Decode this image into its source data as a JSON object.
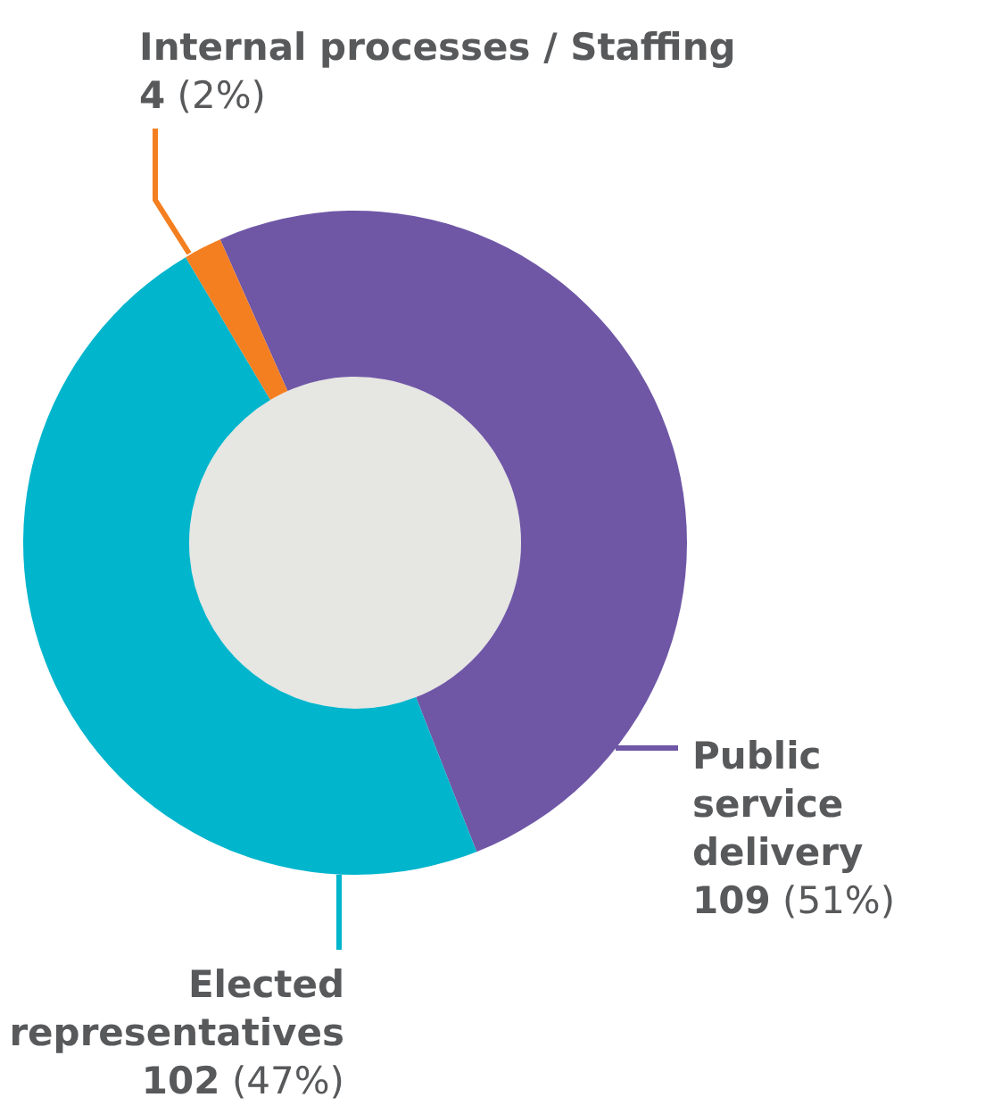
{
  "chart_data": {
    "type": "donut",
    "categories": [
      "Public service delivery",
      "Elected representatives",
      "Internal processes / Staffing"
    ],
    "values": [
      109,
      102,
      4
    ],
    "colors": [
      "#6f57a6",
      "#00b5cc",
      "#f47f20"
    ],
    "value_labels": [
      "109 (51%)",
      "102 (47%)",
      "4 (2%)"
    ],
    "legend": false
  }
}
